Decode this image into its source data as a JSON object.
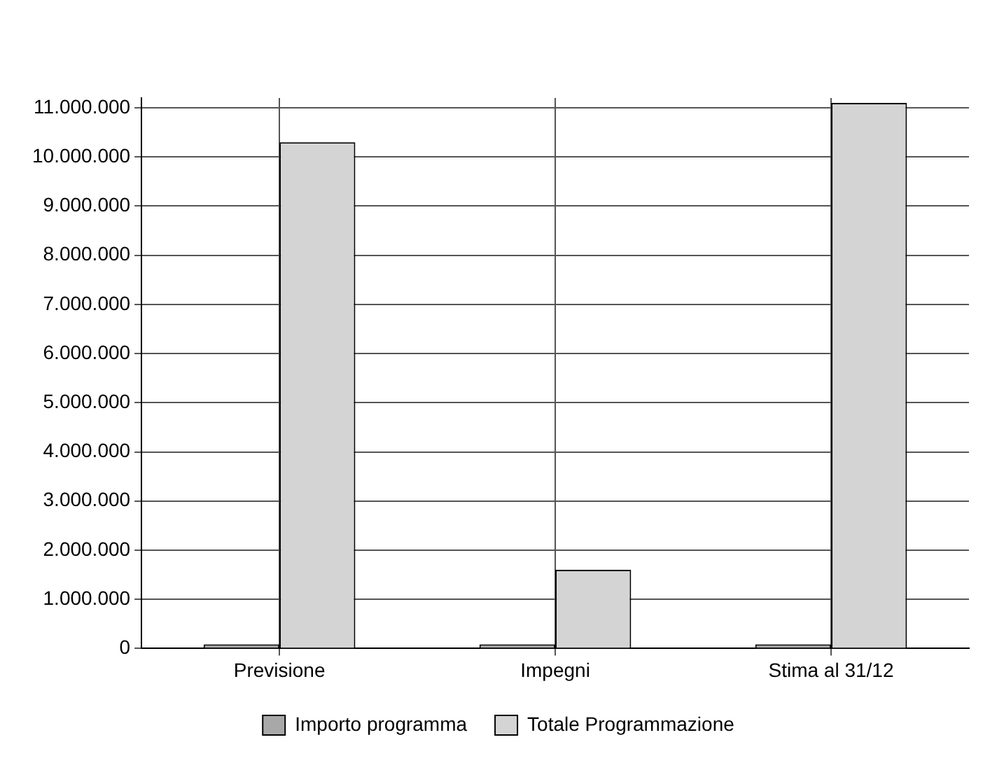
{
  "chart_data": {
    "type": "bar",
    "categories": [
      "Previsione",
      "Impegni",
      "Stima al 31/12"
    ],
    "series": [
      {
        "name": "Importo programma",
        "color": "#a8a8a8",
        "values": [
          0,
          0,
          0
        ]
      },
      {
        "name": "Totale Programmazione",
        "color": "#d4d4d4",
        "values": [
          10300000,
          1600000,
          11100000
        ]
      }
    ],
    "ylim": [
      0,
      11200000
    ],
    "yticks": [
      {
        "value": 0,
        "label": "0"
      },
      {
        "value": 1000000,
        "label": "1.000.000"
      },
      {
        "value": 2000000,
        "label": "2.000.000"
      },
      {
        "value": 3000000,
        "label": "3.000.000"
      },
      {
        "value": 4000000,
        "label": "4.000.000"
      },
      {
        "value": 5000000,
        "label": "5.000.000"
      },
      {
        "value": 6000000,
        "label": "6.000.000"
      },
      {
        "value": 7000000,
        "label": "7.000.000"
      },
      {
        "value": 8000000,
        "label": "8.000.000"
      },
      {
        "value": 9000000,
        "label": "9.000.000"
      },
      {
        "value": 10000000,
        "label": "10.000.000"
      },
      {
        "value": 11000000,
        "label": "11.000.000"
      }
    ],
    "grid": true,
    "legend": "bottom"
  }
}
